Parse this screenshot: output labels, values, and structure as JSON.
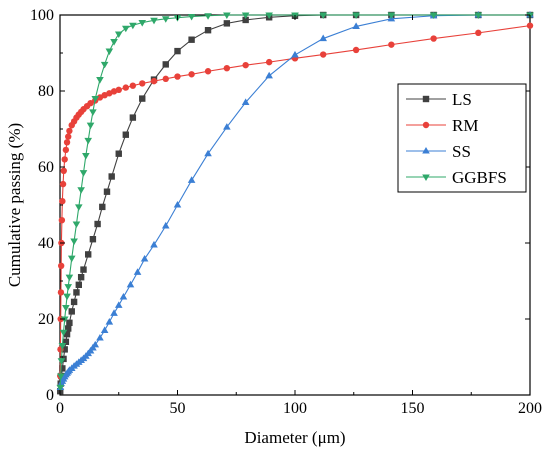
{
  "chart_data": {
    "type": "line",
    "xlabel": "Diameter (μm)",
    "ylabel": "Cumulative passing (%)",
    "xlim": [
      0,
      200
    ],
    "ylim": [
      0,
      100
    ],
    "xticks": [
      0,
      50,
      100,
      150,
      200
    ],
    "yticks": [
      0,
      20,
      40,
      60,
      80,
      100
    ],
    "xtick_labels": [
      "0",
      "50",
      "100",
      "150",
      "200"
    ],
    "ytick_labels": [
      "0",
      "20",
      "40",
      "60",
      "80",
      "100"
    ],
    "grid": false,
    "legend_position": "right",
    "series": [
      {
        "name": "LS",
        "color": "#404040",
        "marker": "square",
        "x": [
          0.1,
          0.3,
          0.6,
          1,
          1.5,
          2,
          2.5,
          3,
          3.5,
          4,
          5,
          6,
          7,
          8,
          9,
          10,
          12,
          14,
          16,
          18,
          20,
          22,
          25,
          28,
          31,
          35,
          40,
          45,
          50,
          56,
          63,
          71,
          79,
          89,
          100,
          112,
          126,
          141,
          159,
          178,
          200
        ],
        "y": [
          1,
          3,
          5,
          7,
          9.5,
          12,
          14,
          16,
          17.5,
          19,
          22,
          24.5,
          27,
          29,
          31,
          33,
          37,
          41,
          45,
          49.5,
          53.5,
          57.5,
          63.5,
          68.5,
          73,
          78,
          83,
          87,
          90.5,
          93.5,
          96,
          97.8,
          98.7,
          99.4,
          99.8,
          100,
          100,
          100,
          100,
          100,
          100
        ]
      },
      {
        "name": "RM",
        "color": "#e8413a",
        "marker": "circle",
        "x": [
          0.1,
          0.2,
          0.3,
          0.4,
          0.5,
          0.6,
          0.8,
          1,
          1.3,
          1.6,
          2,
          2.5,
          3,
          3.5,
          4,
          5,
          6,
          7,
          8,
          9,
          10,
          11.5,
          13,
          15,
          17,
          19,
          21,
          23,
          25,
          28,
          31,
          35,
          40,
          45,
          50,
          56,
          63,
          71,
          79,
          89,
          100,
          112,
          126,
          141,
          159,
          178,
          200
        ],
        "y": [
          5,
          12,
          20,
          27,
          34,
          40,
          46,
          51,
          55.5,
          59,
          62,
          64.5,
          66.5,
          68,
          69.5,
          71,
          72,
          73,
          73.8,
          74.5,
          75.2,
          76,
          76.8,
          77.5,
          78.3,
          78.9,
          79.4,
          79.9,
          80.3,
          80.9,
          81.4,
          82,
          82.6,
          83.2,
          83.8,
          84.4,
          85.2,
          86,
          86.8,
          87.6,
          88.6,
          89.6,
          90.8,
          92.2,
          93.8,
          95.3,
          97.2
        ]
      },
      {
        "name": "SS",
        "color": "#3b7fd4",
        "marker": "triangle-up",
        "x": [
          0.2,
          0.5,
          1,
          1.5,
          2,
          2.5,
          3,
          3.5,
          4,
          5,
          6,
          7,
          8,
          9,
          10,
          11,
          12,
          13,
          14,
          15,
          17,
          19,
          21,
          23,
          25,
          27,
          30,
          33,
          36,
          40,
          45,
          50,
          56,
          63,
          71,
          79,
          89,
          100,
          112,
          126,
          141,
          159,
          178,
          200
        ],
        "y": [
          2,
          3,
          3.6,
          4.2,
          4.8,
          5.3,
          5.7,
          6.1,
          6.5,
          7,
          7.6,
          8.1,
          8.6,
          9.1,
          9.6,
          10.2,
          10.9,
          11.6,
          12.4,
          13.2,
          15,
          17,
          19.2,
          21.5,
          23.6,
          25.8,
          29,
          32.3,
          35.8,
          39.5,
          44.5,
          50,
          56.5,
          63.5,
          70.5,
          77,
          84,
          89.5,
          93.8,
          97,
          99,
          99.8,
          100,
          100
        ]
      },
      {
        "name": "GGBFS",
        "color": "#2fa86a",
        "marker": "triangle-down",
        "x": [
          0.1,
          0.3,
          0.6,
          1,
          1.5,
          2,
          2.5,
          3,
          3.5,
          4,
          5,
          6,
          7,
          8,
          9,
          10,
          11,
          12,
          13,
          14,
          15,
          17,
          19,
          21,
          23,
          25,
          28,
          31,
          35,
          40,
          45,
          50,
          56,
          63,
          71,
          79,
          89,
          100,
          112,
          126,
          141,
          159,
          178,
          200
        ],
        "y": [
          2,
          5,
          9,
          13,
          16.5,
          20,
          23,
          26,
          28.5,
          31,
          36,
          40.5,
          45,
          49.5,
          54,
          58.5,
          63,
          67,
          71,
          74.5,
          78,
          83,
          87,
          90.5,
          93,
          95,
          96.5,
          97.3,
          98,
          98.6,
          99,
          99.3,
          99.6,
          99.8,
          100,
          100,
          100,
          100,
          100,
          100,
          100,
          100,
          100,
          100
        ]
      }
    ]
  }
}
